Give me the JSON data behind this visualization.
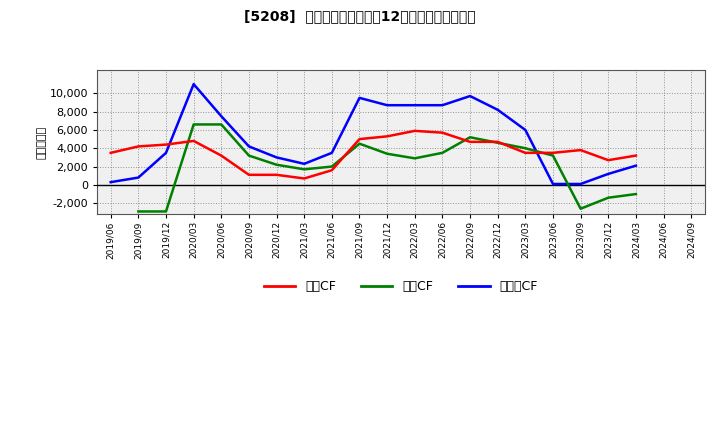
{
  "title": "[5208]  キャッシュフローの12か月移動合計の推移",
  "ylabel": "（百万円）",
  "ylim": [
    -3200,
    12500
  ],
  "yticks": [
    -2000,
    0,
    2000,
    4000,
    6000,
    8000,
    10000
  ],
  "x_labels": [
    "2019/06",
    "2019/09",
    "2019/12",
    "2020/03",
    "2020/06",
    "2020/09",
    "2020/12",
    "2021/03",
    "2021/06",
    "2021/09",
    "2021/12",
    "2022/03",
    "2022/06",
    "2022/09",
    "2022/12",
    "2023/03",
    "2023/06",
    "2023/09",
    "2023/12",
    "2024/03",
    "2024/06",
    "2024/09"
  ],
  "operating_cf": [
    3500,
    4200,
    4400,
    4800,
    3200,
    1100,
    1100,
    700,
    1600,
    5000,
    5300,
    5900,
    5700,
    4700,
    4700,
    3500,
    3500,
    3800,
    2700,
    3200,
    null,
    null
  ],
  "investing_cf": [
    null,
    -2900,
    -2900,
    6600,
    6600,
    3200,
    2200,
    1700,
    2000,
    4500,
    3400,
    2900,
    3500,
    5200,
    4600,
    4000,
    3200,
    -2600,
    -1400,
    -1000,
    null,
    null
  ],
  "free_cf": [
    300,
    800,
    3500,
    11000,
    7500,
    4200,
    3000,
    2300,
    3500,
    9500,
    8700,
    8700,
    8700,
    9700,
    8200,
    6000,
    100,
    100,
    1200,
    2100,
    null,
    null
  ],
  "line_color_operating": "#ff0000",
  "line_color_investing": "#008000",
  "line_color_free": "#0000ff",
  "background_color": "#ffffff",
  "legend_labels": [
    "営業CF",
    "投資CF",
    "フリーCF"
  ]
}
